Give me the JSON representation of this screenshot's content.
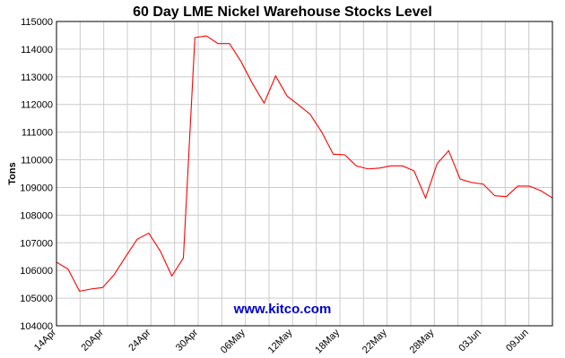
{
  "chart_data": {
    "type": "line",
    "title": "60 Day LME Nickel Warehouse Stocks Level",
    "xlabel": "",
    "ylabel": "Tons",
    "ylim": [
      104000,
      115000
    ],
    "yticks": [
      104000,
      105000,
      106000,
      107000,
      108000,
      109000,
      110000,
      111000,
      112000,
      113000,
      114000,
      115000
    ],
    "xticks": [
      "14Apr",
      "20Apr",
      "24Apr",
      "30Apr",
      "06May",
      "12May",
      "18May",
      "22May",
      "28May",
      "03Jun",
      "09Jun"
    ],
    "grid": true,
    "annotation": "www.kitco.com",
    "line_color": "#ff0000",
    "series": [
      {
        "values": [
          106300,
          106050,
          105250,
          105330,
          105380,
          105850,
          106500,
          107130,
          107350,
          106700,
          105800,
          106450,
          114420,
          114480,
          114200,
          114200,
          113550,
          112750,
          112050,
          113030,
          112300,
          111980,
          111640,
          111000,
          110200,
          110180,
          109780,
          109670,
          109700,
          109780,
          109780,
          109600,
          108620,
          109860,
          110330,
          109300,
          109180,
          109120,
          108700,
          108670,
          109050,
          109050,
          108880,
          108620
        ]
      }
    ]
  }
}
